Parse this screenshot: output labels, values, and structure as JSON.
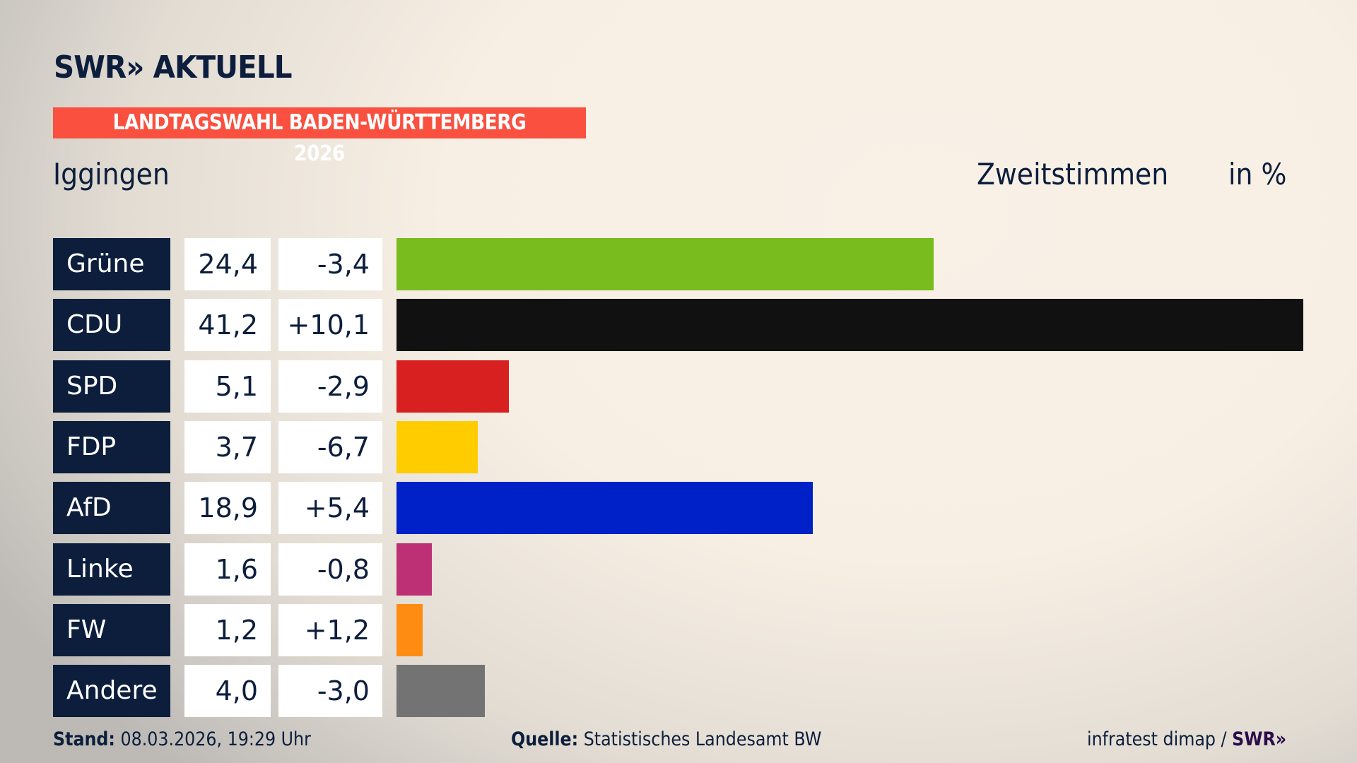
{
  "header": {
    "logo": "SWR» AKTUELL",
    "banner": "LANDTAGSWAHL BADEN-WÜRTTEMBERG 2026",
    "region": "Iggingen",
    "metric": "Zweitstimmen",
    "unit": "in %"
  },
  "chart_data": {
    "type": "bar",
    "orientation": "horizontal",
    "categories": [
      "Grüne",
      "CDU",
      "SPD",
      "FDP",
      "AfD",
      "Linke",
      "FW",
      "Andere"
    ],
    "values": [
      24.4,
      41.2,
      5.1,
      3.7,
      18.9,
      1.6,
      1.2,
      4.0
    ],
    "value_labels": [
      "24,4",
      "41,2",
      "5,1",
      "3,7",
      "18,9",
      "1,6",
      "1,2",
      "4,0"
    ],
    "changes": [
      -3.4,
      10.1,
      -2.9,
      -6.7,
      5.4,
      -0.8,
      1.2,
      -3.0
    ],
    "change_labels": [
      "-3,4",
      "+10,1",
      "-2,9",
      "-6,7",
      "+5,4",
      "-0,8",
      "+1,2",
      "-3,0"
    ],
    "colors": [
      "#79bc1e",
      "#111111",
      "#d7201f",
      "#ffcc00",
      "#0021c8",
      "#bd3075",
      "#ff8c12",
      "#737373"
    ],
    "grid": false,
    "legend": "none"
  },
  "footer": {
    "stand_label": "Stand:",
    "stand_value": "08.03.2026, 19:29 Uhr",
    "source_label": "Quelle:",
    "source_value": "Statistisches Landesamt BW",
    "credit": "infratest dimap /",
    "credit_logo": "SWR»"
  }
}
